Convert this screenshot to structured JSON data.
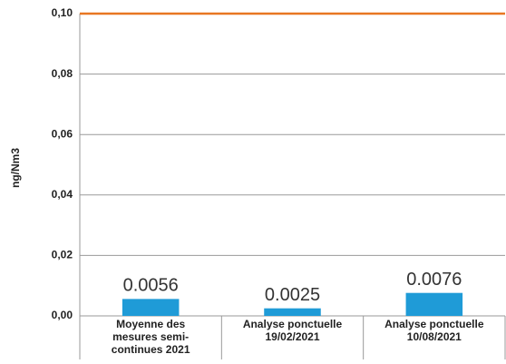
{
  "chart_data": {
    "type": "bar",
    "y_label": "ng/Nm3",
    "categories": [
      "Moyenne des mesures semi-continues 2021",
      "Analyse ponctuelle 19/02/2021",
      "Analyse ponctuelle 10/08/2021"
    ],
    "values": [
      0.0056,
      0.0025,
      0.0076
    ],
    "color": "#1f9bd7",
    "ylim": [
      0,
      0.1
    ],
    "yticks": [
      {
        "value": 0,
        "label": "0,00"
      },
      {
        "value": 0.02,
        "label": "0,02"
      },
      {
        "value": 0.04,
        "label": "0,04"
      },
      {
        "value": 0.06,
        "label": "0,06"
      },
      {
        "value": 0.08,
        "label": "0,08"
      },
      {
        "value": 0.1,
        "label": "0,10"
      }
    ],
    "grid": true,
    "reference_line": {
      "value": 0.1,
      "color": "#e87722"
    }
  }
}
